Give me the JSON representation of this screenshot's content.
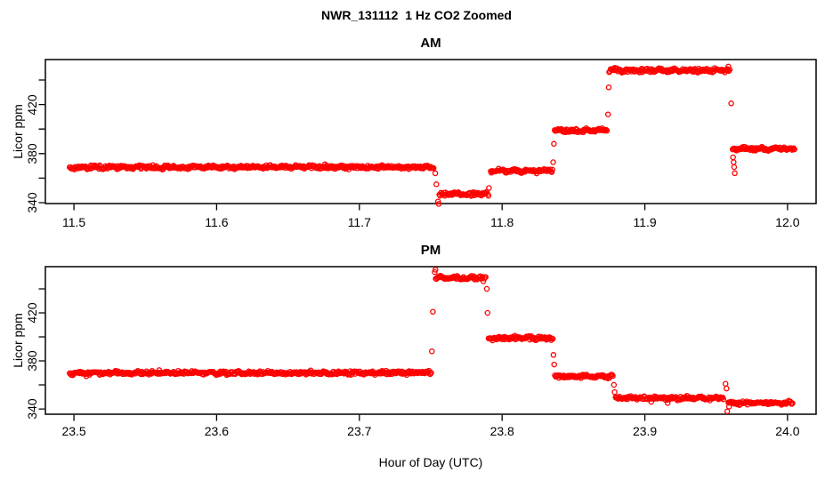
{
  "page": {
    "title": "NWR_131112  1 Hz CO2 Zoomed",
    "xlabel": "Hour of Day (UTC)",
    "background": "#ffffff",
    "axis_color": "#000000",
    "point_color": "#ff0000"
  },
  "chart_data": [
    {
      "type": "scatter",
      "panel": "AM",
      "title": "AM",
      "ylabel": "Licor ppm",
      "marker": "open-circle",
      "color": "#ff0000",
      "sample_rate": "1 Hz",
      "x_ticks": [
        11.5,
        11.6,
        11.7,
        11.8,
        11.9,
        12.0
      ],
      "y_ticks": [
        340,
        360,
        380,
        400,
        420,
        440
      ],
      "y_ticks_labeled": [
        340,
        380,
        420
      ],
      "xlim": [
        11.48,
        12.02
      ],
      "ylim": [
        339.3,
        456.7
      ],
      "grid": false,
      "segments": [
        {
          "start": 11.497,
          "end": 11.7525,
          "ppm": 369
        },
        {
          "start": 11.756,
          "end": 11.7905,
          "ppm": 347
        },
        {
          "start": 11.792,
          "end": 11.8355,
          "ppm": 366
        },
        {
          "start": 11.8368,
          "end": 11.8735,
          "ppm": 399
        },
        {
          "start": 11.875,
          "end": 11.96,
          "ppm": 448
        },
        {
          "start": 11.9615,
          "end": 12.005,
          "ppm": 384
        }
      ],
      "outliers": [
        [
          11.7532,
          364
        ],
        [
          11.7539,
          355
        ],
        [
          11.7551,
          341
        ],
        [
          11.7556,
          339
        ],
        [
          11.7908,
          352
        ],
        [
          11.8358,
          373
        ],
        [
          11.8363,
          388
        ],
        [
          11.8742,
          412
        ],
        [
          11.8747,
          434
        ],
        [
          11.9585,
          451
        ],
        [
          11.9605,
          421
        ],
        [
          11.9618,
          377
        ],
        [
          11.9622,
          373
        ],
        [
          11.9626,
          369
        ],
        [
          11.963,
          364
        ]
      ]
    },
    {
      "type": "scatter",
      "panel": "PM",
      "title": "PM",
      "ylabel": "Licor ppm",
      "marker": "open-circle",
      "color": "#ff0000",
      "sample_rate": "1 Hz",
      "x_ticks": [
        23.5,
        23.6,
        23.7,
        23.8,
        23.9,
        24.0
      ],
      "y_ticks": [
        340,
        360,
        380,
        400,
        420,
        440
      ],
      "y_ticks_labeled": [
        340,
        380,
        420
      ],
      "xlim": [
        23.48,
        24.02
      ],
      "ylim": [
        335.6,
        458.5
      ],
      "grid": false,
      "segments": [
        {
          "start": 23.497,
          "end": 23.7505,
          "ppm": 370
        },
        {
          "start": 23.7535,
          "end": 23.789,
          "ppm": 449
        },
        {
          "start": 23.7905,
          "end": 23.8358,
          "ppm": 399
        },
        {
          "start": 23.837,
          "end": 23.878,
          "ppm": 367
        },
        {
          "start": 23.8795,
          "end": 23.9555,
          "ppm": 349
        },
        {
          "start": 23.9585,
          "end": 24.004,
          "ppm": 345
        }
      ],
      "outliers": [
        [
          23.7508,
          388
        ],
        [
          23.7515,
          421
        ],
        [
          23.7528,
          454
        ],
        [
          23.7533,
          456
        ],
        [
          23.7893,
          440
        ],
        [
          23.7898,
          420
        ],
        [
          23.836,
          385
        ],
        [
          23.8365,
          377
        ],
        [
          23.8783,
          360
        ],
        [
          23.8788,
          354
        ],
        [
          23.916,
          345
        ],
        [
          23.9565,
          361
        ],
        [
          23.9572,
          357
        ],
        [
          23.9578,
          338
        ],
        [
          23.959,
          342
        ]
      ]
    }
  ]
}
